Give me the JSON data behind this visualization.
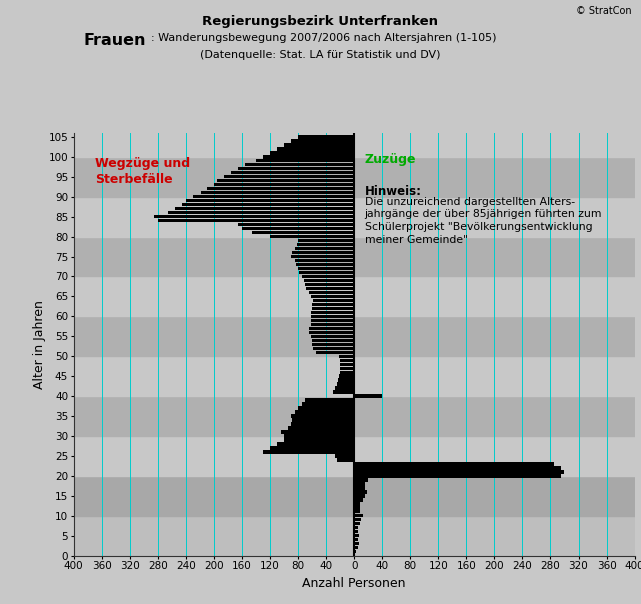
{
  "title_main": "Regierungsbezirk Unterfranken",
  "title_bold": "Frauen",
  "title_normal": ": Wanderungsbewegung 2007/2006 nach Altersjahren (1-105)",
  "title_source": "(Datenquelle: Stat. LA für Statistik und DV)",
  "copyright": "© StratCon",
  "ylabel": "Alter in Jahren",
  "xlabel": "Anzahl Personen",
  "label_left": "Wegzüge und\nSterbefälle",
  "label_right": "Zuzüge",
  "hint_title": "Hinweis:",
  "hint_text": "Die unzureichend dargestellten Alters-\njahrgänge der über 85jährigen führten zum\nSchülerprojekt \"Bevölkerungsentwicklung\nmeiner Gemeinde\"",
  "background_outer": "#c8c8c8",
  "bar_color": "#000000",
  "grid_color": "#00cccc",
  "xlim": [
    -400,
    400
  ],
  "ylim": [
    0,
    106
  ],
  "xticks": [
    -400,
    -360,
    -320,
    -280,
    -240,
    -200,
    -160,
    -120,
    -80,
    -40,
    0,
    40,
    80,
    120,
    160,
    200,
    240,
    280,
    320,
    360,
    400
  ],
  "xticklabels": [
    "400",
    "360",
    "320",
    "280",
    "240",
    "200",
    "160",
    "120",
    "80",
    "40",
    "0",
    "40",
    "80",
    "120",
    "160",
    "200",
    "240",
    "280",
    "320",
    "360",
    "400"
  ],
  "yticks": [
    0,
    5,
    10,
    15,
    20,
    25,
    30,
    35,
    40,
    45,
    50,
    55,
    60,
    65,
    70,
    75,
    80,
    85,
    90,
    95,
    100,
    105
  ],
  "values": [
    3,
    5,
    7,
    5,
    7,
    5,
    6,
    8,
    10,
    12,
    9,
    8,
    9,
    12,
    16,
    18,
    16,
    15,
    20,
    295,
    300,
    295,
    285,
    -24,
    -27,
    -130,
    -120,
    -110,
    -100,
    -100,
    -105,
    -95,
    -90,
    -88,
    -90,
    -85,
    -80,
    -75,
    -70,
    40,
    -30,
    -28,
    -25,
    -23,
    -22,
    -20,
    -20,
    -20,
    -20,
    -22,
    -55,
    -58,
    -60,
    -60,
    -62,
    -65,
    -65,
    -62,
    -62,
    -62,
    -62,
    -60,
    -60,
    -58,
    -62,
    -65,
    -68,
    -70,
    -72,
    -75,
    -78,
    -80,
    -83,
    -85,
    -90,
    -88,
    -85,
    -82,
    -80,
    -120,
    -145,
    -160,
    -165,
    -280,
    -285,
    -265,
    -255,
    -245,
    -240,
    -230,
    -218,
    -210,
    -200,
    -195,
    -185,
    -175,
    -165,
    -155,
    -140,
    -130,
    -120,
    -110,
    -100,
    -90,
    -80
  ]
}
